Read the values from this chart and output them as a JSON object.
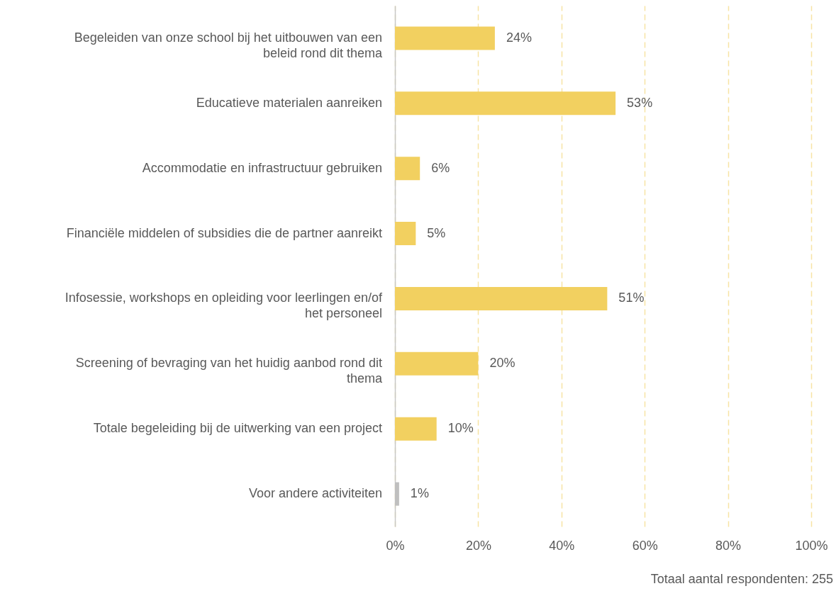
{
  "chart_data": {
    "type": "bar",
    "orientation": "horizontal",
    "categories": [
      "Begeleiden van onze school bij het uitbouwen van een beleid rond dit thema",
      "Educatieve materialen aanreiken",
      "Accommodatie en infrastructuur gebruiken",
      "Financiële middelen of subsidies die de partner aanreikt",
      "Infosessie, workshops en opleiding voor leerlingen en/of het personeel",
      "Screening of bevraging van het huidig aanbod rond dit thema",
      "Totale begeleiding bij de uitwerking van een project",
      "Voor andere activiteiten"
    ],
    "values": [
      24,
      53,
      6,
      5,
      51,
      20,
      10,
      1
    ],
    "value_labels": [
      "24%",
      "53%",
      "6%",
      "5%",
      "51%",
      "20%",
      "10%",
      "1%"
    ],
    "colors": [
      "#f2d060",
      "#f2d060",
      "#f2d060",
      "#f2d060",
      "#f2d060",
      "#f2d060",
      "#f2d060",
      "#bfbfbf"
    ],
    "xlim": [
      0,
      100
    ],
    "xticks": [
      {
        "value": 0,
        "label": "0%"
      },
      {
        "value": 20,
        "label": "20%"
      },
      {
        "value": 40,
        "label": "40%"
      },
      {
        "value": 60,
        "label": "60%"
      },
      {
        "value": 80,
        "label": "80%"
      },
      {
        "value": 100,
        "label": "100%"
      }
    ],
    "grid": "x",
    "line_style": "dashed",
    "annotations": [
      "Totaal aantal respondenten: 255"
    ]
  }
}
